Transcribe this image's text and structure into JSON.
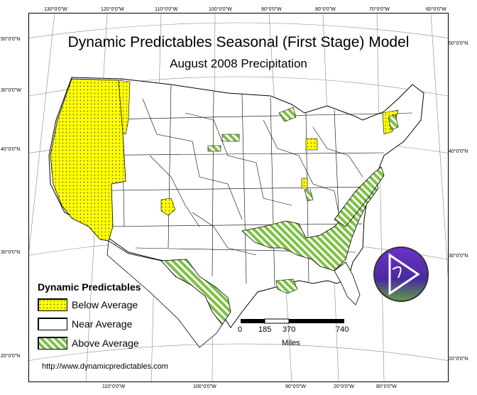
{
  "map": {
    "title": "Dynamic Predictables Seasonal (First Stage) Model",
    "subtitle": "August 2008 Precipitation",
    "url": "http://www.dynamicpredictables.com",
    "top_ticks": [
      "130°0'0\"W",
      "120°0'0\"W",
      "110°0'0\"W",
      "100°0'0\"W",
      "90°0'0\"W",
      "80°0'0\"W",
      "70°0'0\"W",
      "60°0'0\"W"
    ],
    "bottom_ticks": [
      "110°0'0\"W",
      "100°0'0\"W",
      "90°0'0\"W",
      "20°0'0\"W",
      "80°0'0\"W"
    ],
    "left_ticks": [
      "50°0'0\"N",
      "30°0'0\"W",
      "40°0'0\"N",
      "30°0'0\"N",
      "20°0'0\"N"
    ],
    "right_ticks": [
      "50°0'0\"N",
      "40°0'0\"N",
      "30°0'0\"N",
      "20°0'0\"N"
    ]
  },
  "legend": {
    "title": "Dynamic Predictables",
    "items": [
      {
        "label": "Below Average",
        "color": "#ffff00",
        "pattern": "dots"
      },
      {
        "label": "Near Average",
        "color": "#ffffff",
        "pattern": "none"
      },
      {
        "label": "Above Average",
        "color": "#7dc142",
        "pattern": "stripes"
      }
    ]
  },
  "scale_bar": {
    "labels": [
      "0",
      "185",
      "370",
      "740"
    ],
    "unit": "Miles"
  },
  "colors": {
    "below_average": "#ffff00",
    "above_average": "#7dc142",
    "logo_purple": "#5a2db0",
    "logo_green": "#5fa040"
  }
}
